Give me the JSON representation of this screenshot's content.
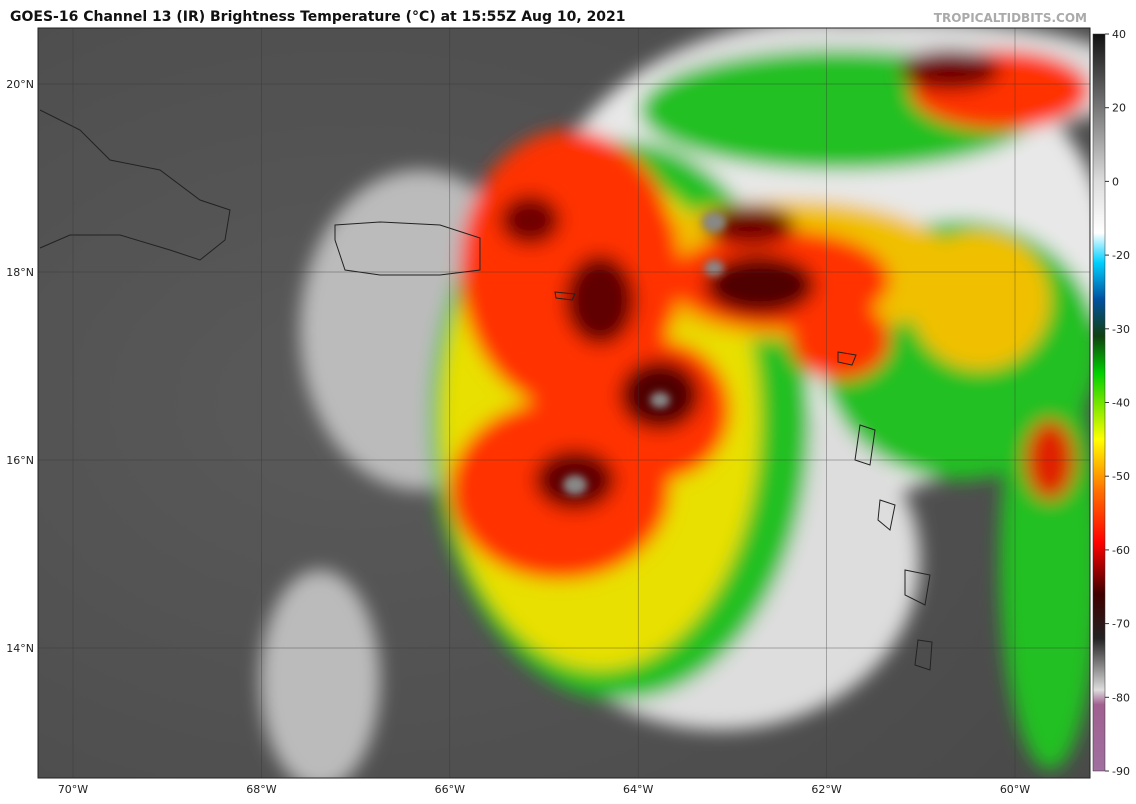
{
  "header": {
    "title": "GOES-16 Channel 13 (IR) Brightness Temperature (°C) at 15:55Z Aug 10, 2021",
    "source": "TROPICALTIDBITS.COM"
  },
  "map": {
    "lat_labels": [
      "20°N",
      "18°N",
      "16°N",
      "14°N"
    ],
    "lon_labels": [
      "70°W",
      "68°W",
      "66°W",
      "64°W",
      "62°W",
      "60°W"
    ]
  },
  "colorbar": {
    "lim": [
      -90,
      40
    ],
    "ticks": [
      40,
      20,
      0,
      -20,
      -30,
      -40,
      -50,
      -60,
      -70,
      -80,
      -90
    ]
  }
}
